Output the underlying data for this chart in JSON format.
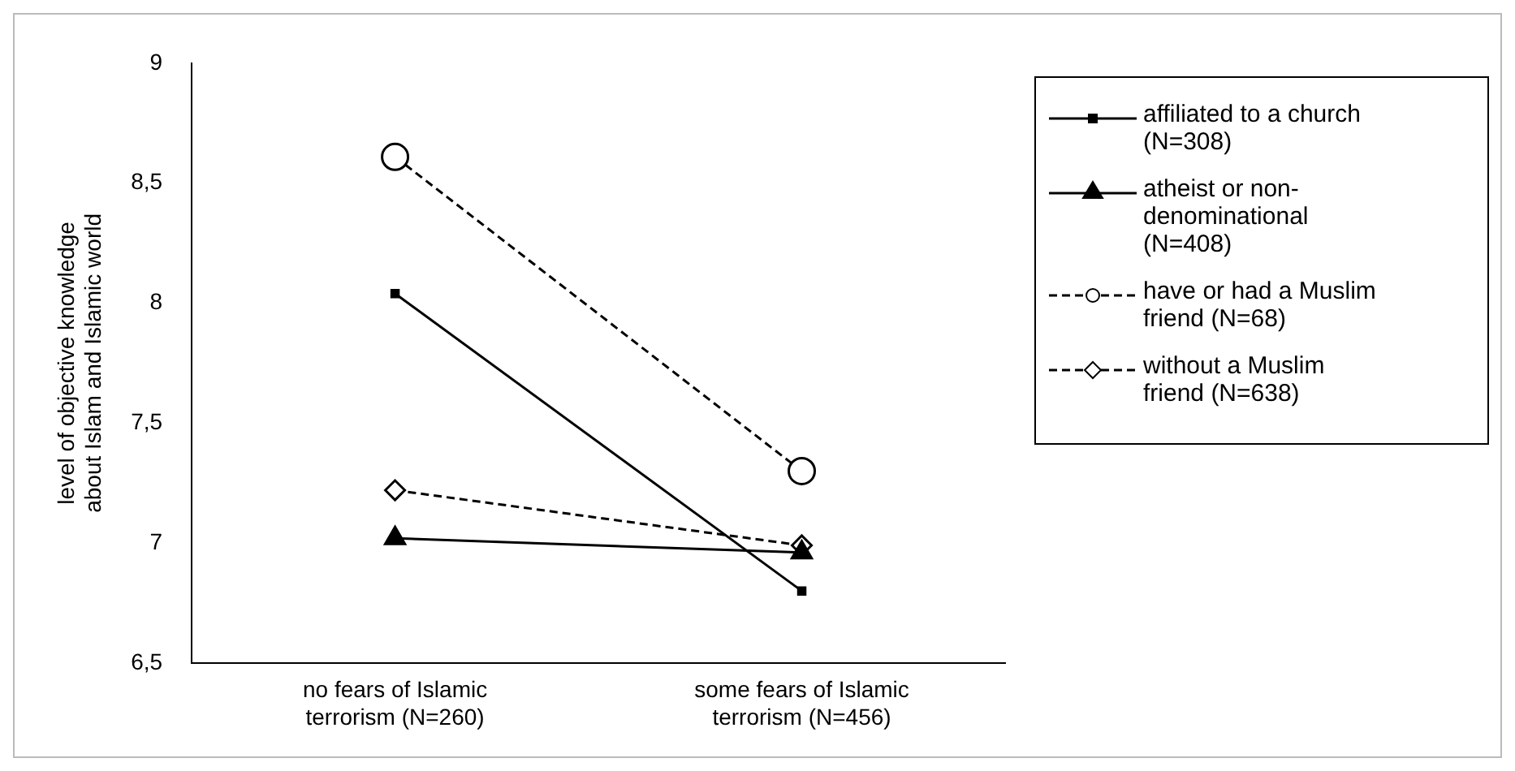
{
  "chart_data": {
    "type": "line",
    "ylabel": "level of objective knowledge about Islam and Islamic world",
    "categories": [
      "no fears of Islamic terrorism (N=260)",
      "some fears of Islamic terrorism (N=456)"
    ],
    "series": [
      {
        "name": "affiliated to a church (N=308)",
        "color": "#000000",
        "values": [
          8.04,
          6.8
        ],
        "marker": "square",
        "line_style": "solid"
      },
      {
        "name": "atheist or non-denominational (N=408)",
        "color": "#000000",
        "values": [
          7.02,
          6.96
        ],
        "marker": "triangle",
        "line_style": "solid"
      },
      {
        "name": "have or had a Muslim friend (N=68)",
        "color": "#000000",
        "values": [
          8.61,
          7.3
        ],
        "marker": "circle",
        "line_style": "dashed"
      },
      {
        "name": "without a Muslim friend (N=638)",
        "color": "#000000",
        "values": [
          7.22,
          6.99
        ],
        "marker": "diamond",
        "line_style": "dashed"
      }
    ],
    "ylim": [
      6.5,
      9
    ],
    "yticks": [
      {
        "value": 6.5,
        "label": "6,5"
      },
      {
        "value": 7,
        "label": "7"
      },
      {
        "value": 7.5,
        "label": "7,5"
      },
      {
        "value": 8,
        "label": "8"
      },
      {
        "value": 8.5,
        "label": "8,5"
      },
      {
        "value": 9,
        "label": "9"
      }
    ],
    "grid": false,
    "legend": "right"
  }
}
